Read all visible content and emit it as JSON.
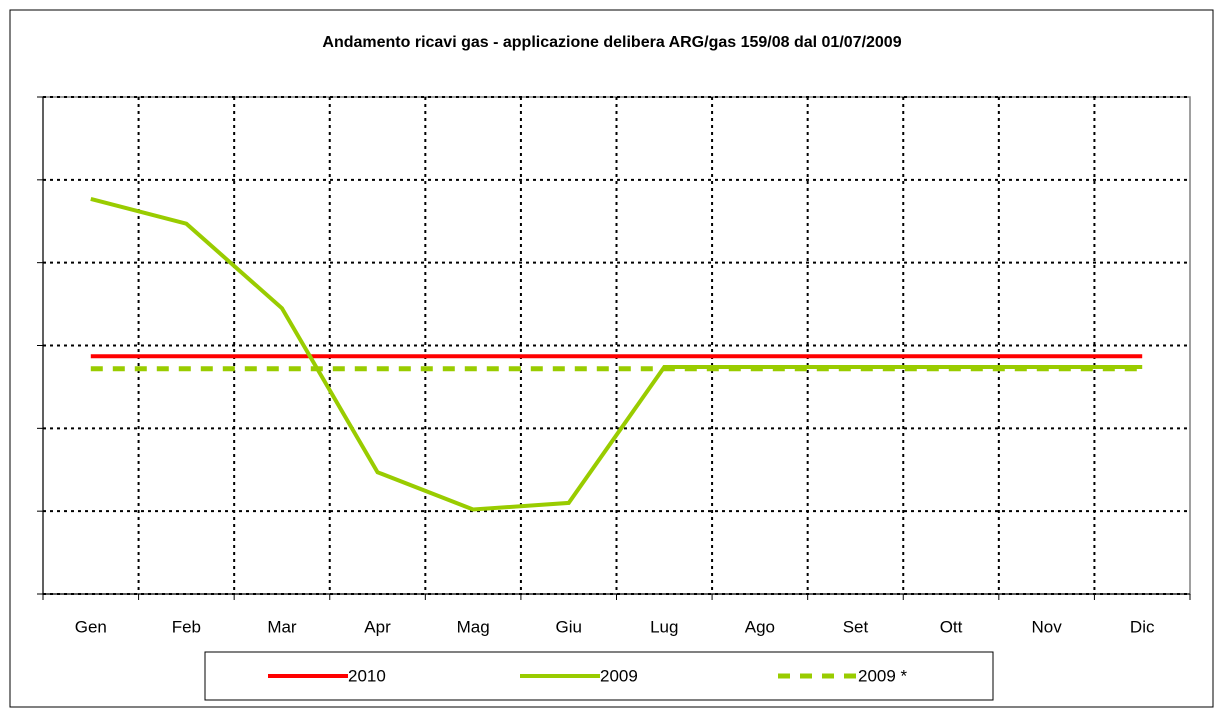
{
  "chart_data": {
    "type": "line",
    "title": "Andamento ricavi gas - applicazione delibera ARG/gas 159/08 dal 01/07/2009",
    "categories": [
      "Gen",
      "Feb",
      "Mar",
      "Apr",
      "Mag",
      "Giu",
      "Lug",
      "Ago",
      "Set",
      "Ott",
      "Nov",
      "Dic"
    ],
    "series": [
      {
        "name": "2010",
        "color": "#ff0000",
        "dash": false,
        "values": [
          2.87,
          2.87,
          2.87,
          2.87,
          2.87,
          2.87,
          2.87,
          2.87,
          2.87,
          2.87,
          2.87,
          2.87
        ]
      },
      {
        "name": "2009",
        "color": "#99cc00",
        "dash": false,
        "values": [
          4.77,
          4.47,
          3.45,
          1.47,
          1.02,
          1.1,
          2.74,
          2.74,
          2.74,
          2.74,
          2.74,
          2.74
        ]
      },
      {
        "name": "2009 *",
        "color": "#99cc00",
        "dash": true,
        "values": [
          2.72,
          2.72,
          2.72,
          2.72,
          2.72,
          2.72,
          2.72,
          2.72,
          2.72,
          2.72,
          2.72,
          2.72
        ]
      }
    ],
    "ylim": [
      0,
      6
    ],
    "yticks": [
      0,
      1,
      2,
      3,
      4,
      5,
      6
    ],
    "grid": true,
    "legend": "bottom"
  }
}
